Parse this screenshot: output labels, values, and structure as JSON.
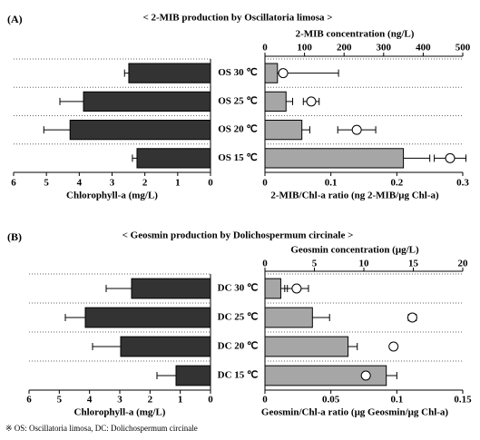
{
  "chart_data": [
    {
      "type": "bar",
      "panel_label": "(A)",
      "title": "< 2-MIB production by Oscillatoria limosa >",
      "categories": [
        "OS 30 ℃",
        "OS 25 ℃",
        "OS 20 ℃",
        "OS 15 ℃"
      ],
      "left": {
        "xlabel": "Chlorophyll-a (mg/L)",
        "xlim": [
          6,
          0
        ],
        "xticks": [
          6,
          5,
          4,
          3,
          2,
          1,
          0
        ],
        "color": "#333333",
        "values": [
          2.49,
          3.87,
          4.28,
          2.24
        ],
        "errors": [
          0.13,
          0.72,
          0.8,
          0.14
        ]
      },
      "right": {
        "xlabel": "2-MIB/Chl-a ratio (ng 2-MIB/μg Chl-a)",
        "xlim": [
          0,
          0.3
        ],
        "xticks": [
          0,
          0.1,
          0.2,
          0.3
        ],
        "color": "#a6a6a6",
        "values": [
          0.019,
          0.032,
          0.056,
          0.21
        ],
        "errors": [
          0.004,
          0.01,
          0.012,
          0.04
        ]
      },
      "top": {
        "xlabel": "2-MIB concentration (ng/L)",
        "xlim": [
          0,
          500
        ],
        "xticks": [
          0,
          100,
          200,
          300,
          400,
          500
        ],
        "color": "#ffffff",
        "values": [
          46,
          117,
          232,
          468
        ],
        "errors": [
          140,
          20,
          48,
          40
        ]
      }
    },
    {
      "type": "bar",
      "panel_label": "(B)",
      "title": "< Geosmin production by Dolichospermum circinale >",
      "categories": [
        "DC 30 ℃",
        "DC 25 ℃",
        "DC 20 ℃",
        "DC 15 ℃"
      ],
      "left": {
        "xlabel": "Chlorophyll-a (mg/L)",
        "xlim": [
          6,
          0
        ],
        "xticks": [
          6,
          5,
          4,
          3,
          2,
          1,
          0
        ],
        "color": "#333333",
        "values": [
          2.61,
          4.14,
          2.97,
          1.14
        ],
        "errors": [
          0.84,
          0.66,
          0.93,
          0.63
        ]
      },
      "right": {
        "xlabel": "Geosmin/Chl-a ratio (μg Geosmin/μg Chl-a)",
        "xlim": [
          0,
          0.15
        ],
        "xticks": [
          0,
          0.05,
          0.1,
          0.15
        ],
        "color": "#a6a6a6",
        "values": [
          0.012,
          0.036,
          0.063,
          0.092
        ],
        "errors": [
          0.005,
          0.013,
          0.007,
          0.008
        ]
      },
      "top": {
        "xlabel": "Geosmin concentration (μg/L)",
        "xlim": [
          0,
          20
        ],
        "xticks": [
          0,
          5,
          10,
          15,
          20
        ],
        "color": "#ffffff",
        "values": [
          3.2,
          14.9,
          13.0,
          10.2
        ],
        "errors": [
          1.2,
          0.4,
          0,
          0.6
        ]
      }
    }
  ],
  "footnote": "※ OS: Oscillatoria limosa, DC: Dolichospermum circinale"
}
